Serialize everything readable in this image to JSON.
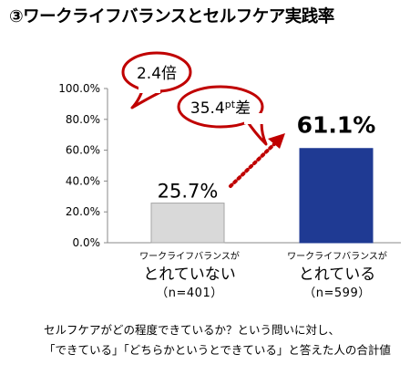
{
  "title": "③ワークライフバランスとセルフケア実践率",
  "chart_data": {
    "type": "bar",
    "categories": [
      "ワークライフバランスが とれていない（n=401）",
      "ワークライフバランスが とれている（n=599）"
    ],
    "values": [
      25.7,
      61.1
    ],
    "value_labels": [
      "25.7%",
      "61.1%"
    ],
    "ylim": [
      0,
      100
    ],
    "y_ticks": [
      "0.0%",
      "20.0%",
      "40.0%",
      "60.0%",
      "80.0%",
      "100.0%"
    ],
    "bar_colors": [
      "#d9d9d9",
      "#1f3a93"
    ],
    "grid": false
  },
  "categories_display": [
    {
      "line1": "ワークライフバランスが",
      "line2": "とれていない",
      "n": "（n=401）"
    },
    {
      "line1": "ワークライフバランスが",
      "line2": "とれている",
      "n": "（n=599）"
    }
  ],
  "annotations": {
    "ratio": "2.4倍",
    "diff_number": "35.4",
    "diff_unit": "pt",
    "diff_suffix": "差",
    "callout_color": "#c00000"
  },
  "footnote": {
    "line1": "セルフケアがどの程度できているか？という問いに対し、",
    "line2": "「できている」「どちらかというとできている」と答えた人の合計値"
  }
}
